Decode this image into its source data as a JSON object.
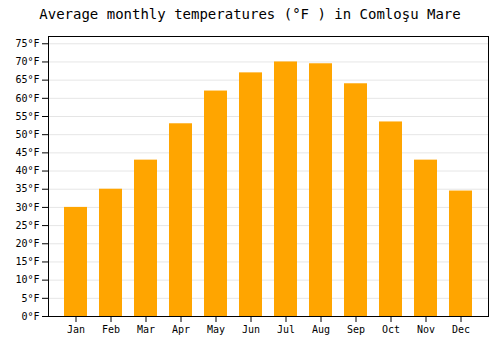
{
  "chart_data": {
    "type": "bar",
    "title": "Average monthly temperatures (°F ) in Comloşu Mare",
    "categories": [
      "Jan",
      "Feb",
      "Mar",
      "Apr",
      "May",
      "Jun",
      "Jul",
      "Aug",
      "Sep",
      "Oct",
      "Nov",
      "Dec"
    ],
    "values": [
      30,
      35,
      43,
      53,
      62,
      67,
      70,
      69.5,
      64,
      53.5,
      43,
      34.5
    ],
    "color": "#FFA500",
    "ylim": [
      0,
      77
    ],
    "yticks": [
      {
        "value": 0,
        "label": "0°F"
      },
      {
        "value": 5,
        "label": "5°F"
      },
      {
        "value": 10,
        "label": "10°F"
      },
      {
        "value": 15,
        "label": "15°F"
      },
      {
        "value": 20,
        "label": "20°F"
      },
      {
        "value": 25,
        "label": "25°F"
      },
      {
        "value": 30,
        "label": "30°F"
      },
      {
        "value": 35,
        "label": "35°F"
      },
      {
        "value": 40,
        "label": "40°F"
      },
      {
        "value": 45,
        "label": "45°F"
      },
      {
        "value": 50,
        "label": "50°F"
      },
      {
        "value": 55,
        "label": "55°F"
      },
      {
        "value": 60,
        "label": "60°F"
      },
      {
        "value": 65,
        "label": "65°F"
      },
      {
        "value": 70,
        "label": "70°F"
      },
      {
        "value": 75,
        "label": "75°F"
      }
    ],
    "grid": true
  }
}
